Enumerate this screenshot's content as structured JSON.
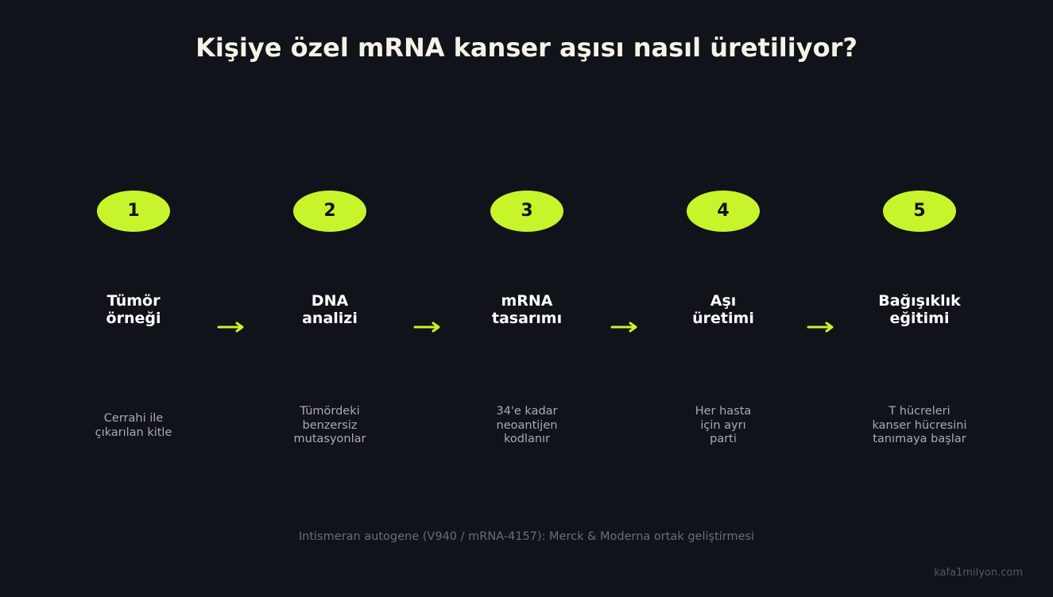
{
  "title": "Kişiye özel mRNA kanser aşısı nasıl üretiliyor?",
  "accent_color": "#c8f42c",
  "background_color": "#10131a",
  "steps": [
    {
      "number": "1",
      "title_lines": [
        "Tümör",
        "örneği"
      ],
      "desc_lines": [
        "Cerrahi ile",
        "çıkarılan kitle"
      ]
    },
    {
      "number": "2",
      "title_lines": [
        "DNA",
        "analizi"
      ],
      "desc_lines": [
        "Tümördeki",
        "benzersiz",
        "mutasyonlar"
      ]
    },
    {
      "number": "3",
      "title_lines": [
        "mRNA",
        "tasarımı"
      ],
      "desc_lines": [
        "34'e kadar",
        "neoantijen",
        "kodlanır"
      ]
    },
    {
      "number": "4",
      "title_lines": [
        "Aşı",
        "üretimi"
      ],
      "desc_lines": [
        "Her hasta",
        "için ayrı",
        "parti"
      ]
    },
    {
      "number": "5",
      "title_lines": [
        "Bağışıklık",
        "eğitimi"
      ],
      "desc_lines": [
        "T hücreleri",
        "kanser hücresini",
        "tanımaya başlar"
      ]
    }
  ],
  "connector_icon": "right-arrow-icon",
  "footnote": "Intismeran autogene (V940 / mRNA-4157): Merck & Moderna ortak geliştirmesi",
  "credit": "kafa1milyon.com"
}
